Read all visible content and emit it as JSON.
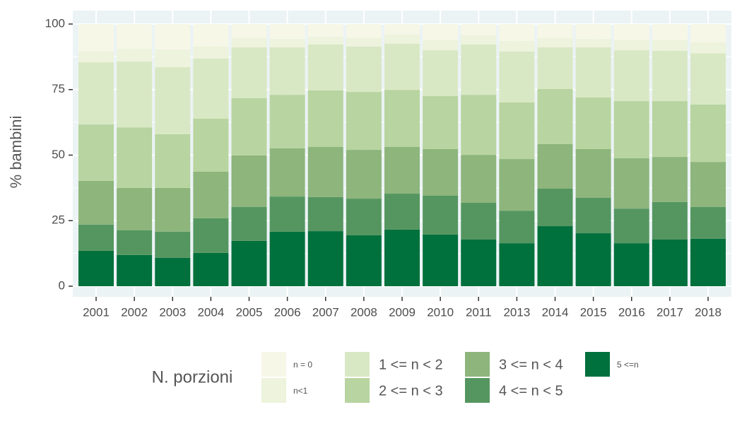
{
  "chart_data": {
    "type": "stacked_bar",
    "y_label": "% bambini",
    "legend_title": "N. porzioni",
    "categories": [
      "2001",
      "2002",
      "2003",
      "2004",
      "2005",
      "2006",
      "2007",
      "2008",
      "2009",
      "2010",
      "2011",
      "2013",
      "2014",
      "2015",
      "2016",
      "2017",
      "2018"
    ],
    "ylim": [
      0,
      100
    ],
    "yticks": [
      0,
      25,
      50,
      75,
      100
    ],
    "grid": true,
    "series": [
      {
        "name": "5 <=n",
        "color": "#00703c",
        "values": [
          13.5,
          11.9,
          10.8,
          12.7,
          17.3,
          20.8,
          21,
          19.4,
          21.6,
          19.7,
          17.8,
          16.4,
          22.9,
          20.2,
          16.4,
          17.8,
          18.1
        ]
      },
      {
        "name": "4 <= n < 5",
        "color": "#559660",
        "values": [
          10,
          9.4,
          10,
          13.2,
          12.9,
          13.4,
          13,
          14,
          13.7,
          14.8,
          14,
          12.4,
          14.3,
          13.5,
          13.2,
          14.3,
          12.1
        ]
      },
      {
        "name": "3 <= n < 4",
        "color": "#8db57c",
        "values": [
          16.7,
          16.2,
          16.7,
          17.8,
          19.7,
          18.4,
          19.1,
          18.6,
          17.8,
          17.8,
          18.3,
          19.7,
          17,
          18.6,
          19.2,
          17.2,
          17.2
        ]
      },
      {
        "name": "2 <= n < 3",
        "color": "#b8d4a0",
        "values": [
          21.5,
          23.1,
          20.5,
          20.2,
          21.8,
          20.4,
          21.6,
          22.1,
          21.8,
          20.2,
          22.9,
          21.6,
          21,
          19.7,
          21.8,
          21.3,
          21.9
        ]
      },
      {
        "name": "1 <= n < 2",
        "color": "#d9e8c4",
        "values": [
          23.7,
          25.1,
          25.6,
          22.9,
          19.4,
          18.1,
          17.5,
          17.3,
          17.6,
          17.5,
          19.2,
          19.4,
          15.9,
          19.1,
          19.4,
          19.2,
          19.6
        ]
      },
      {
        "name": "n<1",
        "color": "#edf3dc",
        "values": [
          4.1,
          4.9,
          6.7,
          4.6,
          3.5,
          3.2,
          2.9,
          3.2,
          3.5,
          3.8,
          3.5,
          4,
          3.5,
          3.2,
          3.8,
          4,
          4.1
        ]
      },
      {
        "name": "n = 0",
        "color": "#f7f7e8",
        "values": [
          10.5,
          9.4,
          9.7,
          8.6,
          5.4,
          5.7,
          4.9,
          5.4,
          4,
          6.2,
          4.3,
          6.5,
          5.4,
          5.7,
          6.2,
          6.2,
          7
        ]
      }
    ]
  }
}
